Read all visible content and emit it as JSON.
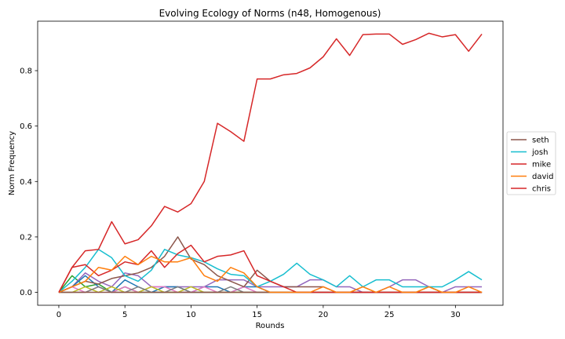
{
  "chart_data": {
    "type": "line",
    "title": "Evolving Ecology of Norms (n48, Homogenous)",
    "xlabel": "Rounds",
    "ylabel": "Norm Frequency",
    "xlim": [
      -1.6,
      33.6
    ],
    "ylim": [
      -0.0466,
      0.9785
    ],
    "xticks": [
      0,
      5,
      10,
      15,
      20,
      25,
      30
    ],
    "yticks": [
      0.0,
      0.2,
      0.4,
      0.6,
      0.8
    ],
    "ytick_labels": [
      "0.0",
      "0.2",
      "0.4",
      "0.6",
      "0.8"
    ],
    "grid": false,
    "legend_position": "center-right",
    "x": [
      0,
      1,
      2,
      3,
      4,
      5,
      6,
      7,
      8,
      9,
      10,
      11,
      12,
      13,
      14,
      15,
      16,
      17,
      18,
      19,
      20,
      21,
      22,
      23,
      24,
      25,
      26,
      27,
      28,
      29,
      30,
      31,
      32
    ],
    "series": [
      {
        "name": "seth",
        "color": "#8c564b",
        "legend": true,
        "values": [
          0,
          0.02,
          0.04,
          0.03,
          0.05,
          0.06,
          0.07,
          0.09,
          0.13,
          0.2,
          0.12,
          0.1,
          0.06,
          0.04,
          0.02,
          0.08,
          0.04,
          0.02,
          0.02,
          0.02,
          0.02,
          0,
          0,
          0,
          0,
          0,
          0,
          0,
          0,
          0,
          0,
          0,
          0
        ]
      },
      {
        "name": "josh",
        "color": "#17becf",
        "legend": true,
        "values": [
          0,
          0.04,
          0.09,
          0.155,
          0.125,
          0.06,
          0.04,
          0.08,
          0.155,
          0.135,
          0.125,
          0.11,
          0.085,
          0.065,
          0.06,
          0.02,
          0.04,
          0.065,
          0.105,
          0.065,
          0.045,
          0.02,
          0.06,
          0.02,
          0.045,
          0.045,
          0.02,
          0.02,
          0.02,
          0.02,
          0.045,
          0.075,
          0.045
        ]
      },
      {
        "name": "mike",
        "color": "#d62728",
        "legend": true,
        "values": [
          0,
          0.09,
          0.1,
          0.06,
          0.08,
          0.11,
          0.1,
          0.15,
          0.09,
          0.14,
          0.17,
          0.11,
          0.13,
          0.135,
          0.15,
          0.06,
          0.04,
          0.02,
          0,
          0,
          0,
          0,
          0,
          0,
          0,
          0,
          0,
          0,
          0,
          0,
          0,
          0,
          0
        ]
      },
      {
        "name": "david",
        "color": "#ff7f0e",
        "legend": true,
        "values": [
          0,
          0.02,
          0.04,
          0.09,
          0.08,
          0.13,
          0.1,
          0.13,
          0.11,
          0.11,
          0.125,
          0.06,
          0.04,
          0.09,
          0.07,
          0.02,
          0,
          0,
          0,
          0,
          0.02,
          0,
          0,
          0.02,
          0,
          0.02,
          0,
          0,
          0.02,
          0,
          0,
          0.02,
          0
        ]
      },
      {
        "name": "chris",
        "color": "#d62728",
        "legend": true,
        "values": [
          0,
          0.09,
          0.15,
          0.155,
          0.255,
          0.175,
          0.19,
          0.24,
          0.31,
          0.29,
          0.32,
          0.4,
          0.61,
          0.58,
          0.545,
          0.77,
          0.77,
          0.785,
          0.79,
          0.81,
          0.85,
          0.915,
          0.855,
          0.93,
          0.932,
          0.932,
          0.895,
          0.912,
          0.935,
          0.922,
          0.93,
          0.87,
          0.932
        ]
      },
      {
        "name": "",
        "color": "#2ca02c",
        "legend": false,
        "values": [
          0,
          0.06,
          0.02,
          0.03,
          0,
          0.02,
          0,
          0,
          0,
          0,
          0,
          0,
          0,
          0,
          0,
          0,
          0,
          0,
          0,
          0,
          0,
          0,
          0,
          0,
          0,
          0,
          0,
          0,
          0,
          0,
          0,
          0,
          0
        ]
      },
      {
        "name": "",
        "color": "#9467bd",
        "legend": false,
        "values": [
          0,
          0.02,
          0.07,
          0.04,
          0.02,
          0.07,
          0.06,
          0.02,
          0.02,
          0.02,
          0.02,
          0.02,
          0.045,
          0.045,
          0.045,
          0.02,
          0.02,
          0.02,
          0.02,
          0.045,
          0.045,
          0.02,
          0.02,
          0,
          0,
          0.02,
          0.045,
          0.045,
          0.02,
          0,
          0.02,
          0.02,
          0.02
        ]
      },
      {
        "name": "",
        "color": "#1f77b4",
        "legend": false,
        "values": [
          0,
          0.02,
          0.06,
          0.02,
          0,
          0.045,
          0.02,
          0,
          0.02,
          0.02,
          0,
          0.02,
          0.02,
          0,
          0.02,
          0.02,
          0,
          0,
          0,
          0,
          0,
          0,
          0,
          0,
          0,
          0,
          0,
          0,
          0,
          0,
          0,
          0,
          0
        ]
      },
      {
        "name": "",
        "color": "#e377c2",
        "legend": false,
        "values": [
          0,
          0.02,
          0,
          0.02,
          0,
          0.02,
          0,
          0.02,
          0.02,
          0,
          0,
          0.02,
          0,
          0,
          0.02,
          0,
          0,
          0,
          0,
          0,
          0,
          0,
          0,
          0,
          0,
          0,
          0,
          0,
          0,
          0,
          0,
          0,
          0
        ]
      },
      {
        "name": "",
        "color": "#bcbd22",
        "legend": false,
        "values": [
          0,
          0,
          0.02,
          0,
          0.02,
          0,
          0,
          0.02,
          0,
          0,
          0.02,
          0,
          0,
          0,
          0,
          0,
          0,
          0,
          0,
          0,
          0,
          0,
          0,
          0.02,
          0,
          0,
          0,
          0,
          0.02,
          0,
          0,
          0,
          0
        ]
      },
      {
        "name": "",
        "color": "#7f7f7f",
        "legend": false,
        "values": [
          0,
          0,
          0,
          0.02,
          0,
          0,
          0.02,
          0,
          0,
          0.02,
          0,
          0,
          0,
          0.02,
          0,
          0,
          0,
          0,
          0,
          0,
          0,
          0,
          0,
          0,
          0,
          0,
          0,
          0,
          0,
          0,
          0,
          0,
          0
        ]
      },
      {
        "name": "",
        "color": "#8c564b",
        "legend": false,
        "values": [
          0,
          0,
          0,
          0,
          0,
          0,
          0,
          0,
          0,
          0,
          0,
          0,
          0,
          0,
          0,
          0,
          0,
          0,
          0,
          0,
          0,
          0,
          0,
          0,
          0,
          0,
          0,
          0,
          0,
          0,
          0,
          0,
          0
        ]
      }
    ]
  }
}
